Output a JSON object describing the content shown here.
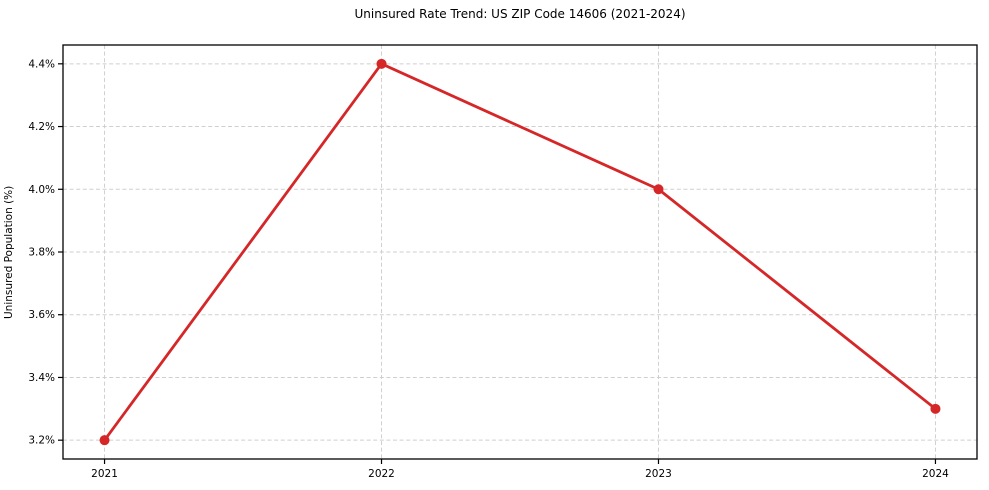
{
  "chart_data": {
    "type": "line",
    "title": "Uninsured Rate Trend: US ZIP Code 14606 (2021-2024)",
    "xlabel": "",
    "ylabel": "Uninsured Population (%)",
    "x": [
      2021,
      2022,
      2023,
      2024
    ],
    "x_tick_labels": [
      "2021",
      "2022",
      "2023",
      "2024"
    ],
    "series": [
      {
        "name": "uninsured-rate",
        "values": [
          3.2,
          4.4,
          4.0,
          3.3
        ],
        "color": "#d62728",
        "marker": "circle"
      }
    ],
    "y_ticks": [
      3.2,
      3.4,
      3.6,
      3.8,
      4.0,
      4.2,
      4.4
    ],
    "y_tick_labels": [
      "3.2%",
      "3.4%",
      "3.6%",
      "3.8%",
      "4.0%",
      "4.2%",
      "4.4%"
    ],
    "xlim": [
      2020.85,
      2024.15
    ],
    "ylim": [
      3.14,
      4.46
    ],
    "grid": {
      "visible": true,
      "style": "dashed",
      "color": "#cfcfcf"
    },
    "legend": "none",
    "background": "#ffffff",
    "spine_color": "#000000",
    "tick_label_color": "#000000"
  }
}
